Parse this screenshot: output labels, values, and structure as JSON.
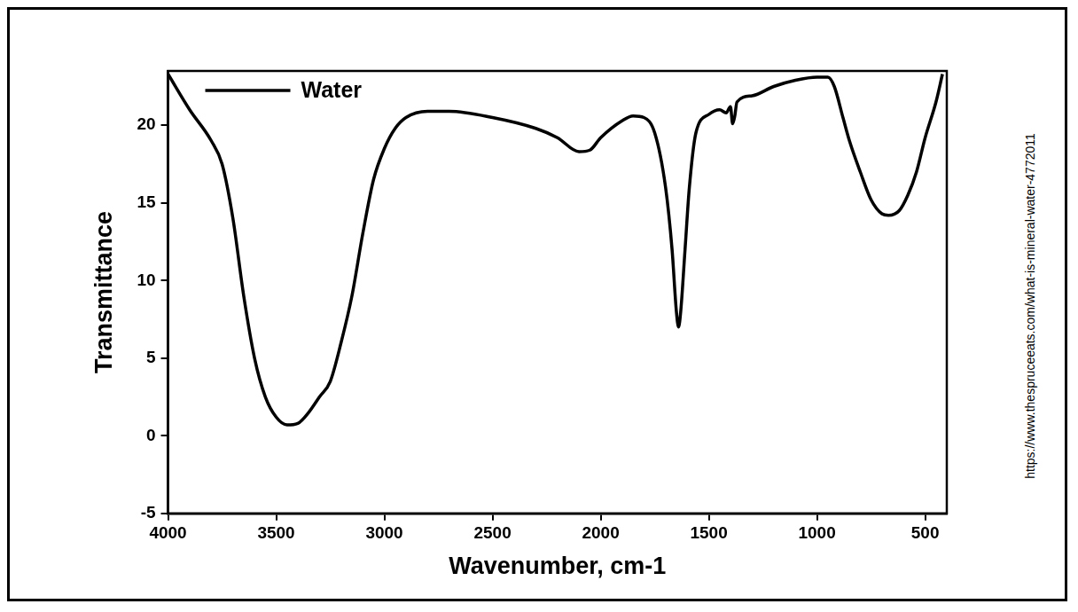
{
  "chart_data": {
    "type": "line",
    "xlabel": "Wavenumber, cm-1",
    "ylabel": "Transmittance",
    "annotation": "https://www.thespruceeats.com/what-is-mineral-water-4772011",
    "x": [
      4000,
      3900,
      3800,
      3750,
      3700,
      3650,
      3600,
      3550,
      3500,
      3450,
      3400,
      3350,
      3300,
      3250,
      3200,
      3150,
      3100,
      3050,
      3000,
      2950,
      2900,
      2800,
      2700,
      2500,
      2300,
      2200,
      2100,
      2050,
      2000,
      1900,
      1850,
      1800,
      1750,
      1700,
      1670,
      1650,
      1640,
      1630,
      1610,
      1590,
      1560,
      1500,
      1450,
      1420,
      1400,
      1390,
      1380,
      1370,
      1300,
      1200,
      1100,
      1000,
      950,
      920,
      880,
      850,
      800,
      750,
      700,
      670,
      620,
      580,
      540,
      500,
      450,
      420
    ],
    "series": [
      {
        "name": "Water",
        "color": "#000000",
        "values": [
          23.3,
          21,
          19,
          17.5,
          14,
          9,
          5,
          2.5,
          1.2,
          0.7,
          0.8,
          1.5,
          2.5,
          3.5,
          6,
          9,
          13,
          16.5,
          18.5,
          19.8,
          20.5,
          20.9,
          20.9,
          20.5,
          19.8,
          19.2,
          18.3,
          18.4,
          19.2,
          20.3,
          20.6,
          20.5,
          19.5,
          16,
          12,
          8,
          7,
          8,
          12,
          16,
          19.5,
          20.7,
          21,
          20.8,
          21.2,
          20.1,
          20.6,
          21.5,
          21.9,
          22.5,
          22.9,
          23.1,
          23.1,
          22.5,
          20.5,
          19,
          17,
          15.2,
          14.3,
          14.2,
          14.5,
          15.5,
          17,
          19.2,
          21.5,
          23.3
        ]
      }
    ],
    "xlim": [
      4000,
      400
    ],
    "xticks": [
      4000,
      3500,
      3000,
      2500,
      2000,
      1500,
      1000,
      500
    ],
    "ylim": [
      -5,
      23.5
    ],
    "yticks": [
      -5,
      0,
      5,
      10,
      15,
      20
    ],
    "grid": false,
    "legend": "upper left"
  }
}
